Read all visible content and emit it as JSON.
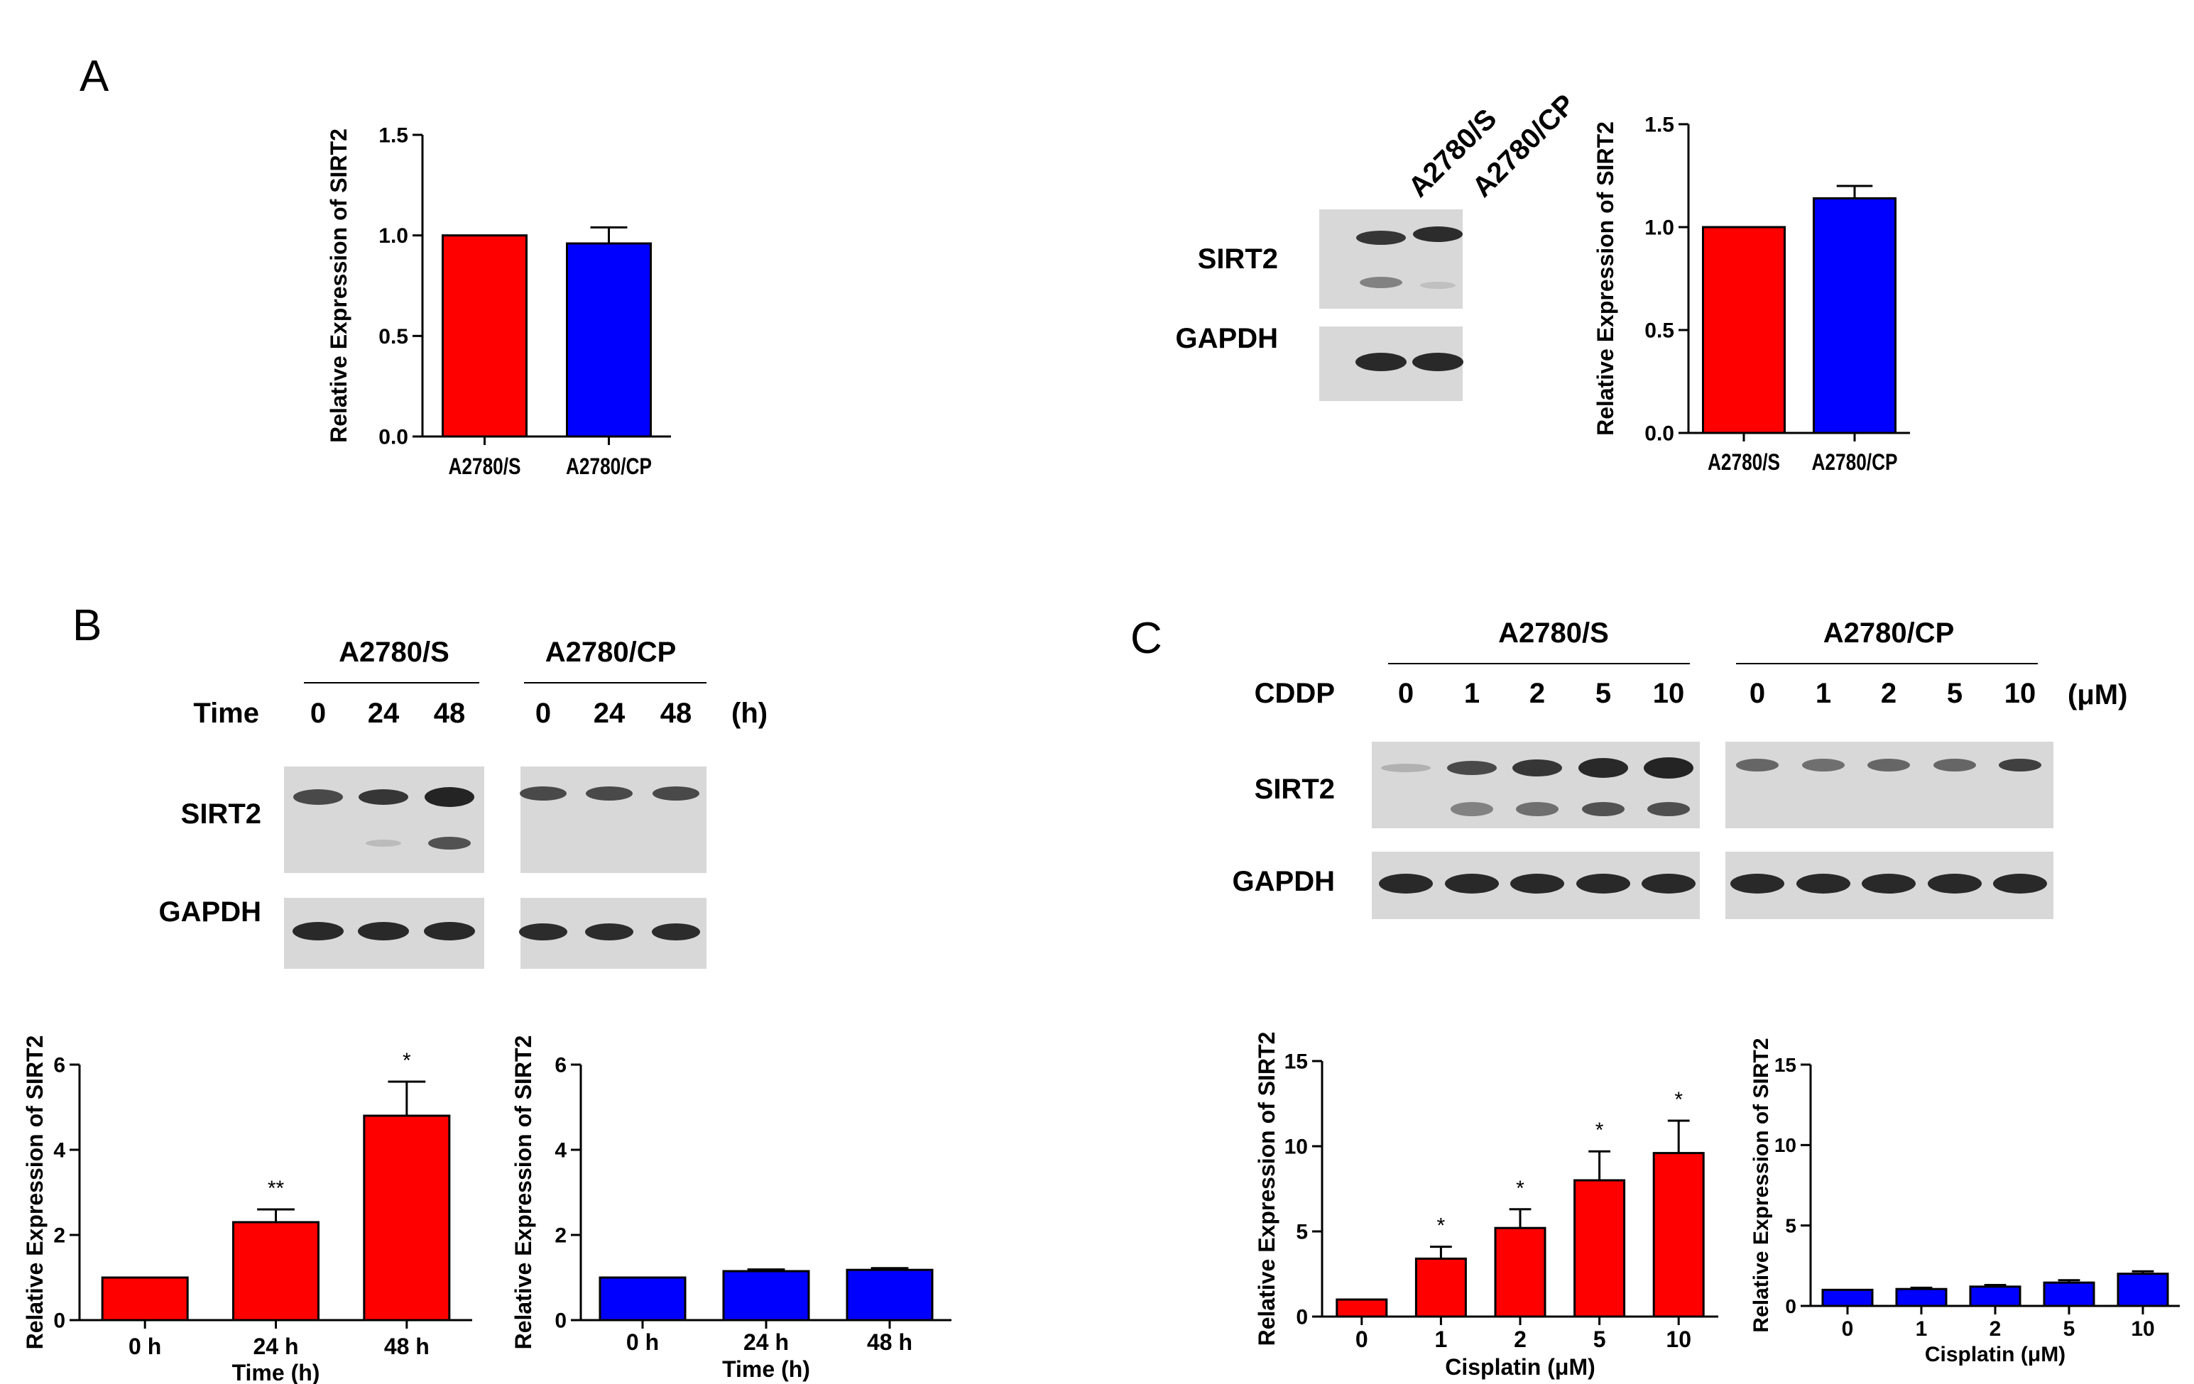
{
  "figure": {
    "panel_letters": [
      "A",
      "B",
      "C"
    ],
    "colors": {
      "red": "#ff0000",
      "blue": "#0000ff",
      "axis": "#000000",
      "blot_bg": "#d8d8d8",
      "band": "#1a1a1a"
    }
  },
  "blot_A": {
    "lanes": [
      "A2780/S",
      "A2780/CP"
    ],
    "rows": [
      "SIRT2",
      "GAPDH"
    ]
  },
  "blot_B": {
    "groups": [
      "A2780/S",
      "A2780/CP"
    ],
    "time_label": "Time",
    "unit": "(h)",
    "lanes": [
      "0",
      "24",
      "48",
      "0",
      "24",
      "48"
    ],
    "rows": [
      "SIRT2",
      "GAPDH"
    ]
  },
  "blot_C": {
    "groups": [
      "A2780/S",
      "A2780/CP"
    ],
    "dose_label": "CDDP",
    "unit": "(μM)",
    "lanes": [
      "0",
      "1",
      "2",
      "5",
      "10",
      "0",
      "1",
      "2",
      "5",
      "10"
    ],
    "rows": [
      "SIRT2",
      "GAPDH"
    ]
  },
  "chart_data": [
    {
      "id": "A1",
      "type": "bar",
      "title": "",
      "xlabel": "",
      "ylabel": "Relative Expression of SIRT2",
      "categories": [
        "A2780/S",
        "A2780/CP"
      ],
      "values": [
        1.0,
        0.96
      ],
      "errors": [
        0,
        0.08
      ],
      "colors": [
        "#ff0000",
        "#0000ff"
      ],
      "ylim": [
        0,
        1.5
      ],
      "yticks": [
        "0.0",
        "0.5",
        "1.0",
        "1.5"
      ],
      "annotations": [
        "",
        ""
      ]
    },
    {
      "id": "A2",
      "type": "bar",
      "title": "",
      "xlabel": "",
      "ylabel": "Relative Expression of SIRT2",
      "categories": [
        "A2780/S",
        "A2780/CP"
      ],
      "values": [
        1.0,
        1.14
      ],
      "errors": [
        0,
        0.06
      ],
      "colors": [
        "#ff0000",
        "#0000ff"
      ],
      "ylim": [
        0,
        1.5
      ],
      "yticks": [
        "0.0",
        "0.5",
        "1.0",
        "1.5"
      ],
      "annotations": [
        "",
        ""
      ]
    },
    {
      "id": "B1",
      "type": "bar",
      "title": "",
      "xlabel": "Time (h)",
      "ylabel": "Relative Expression of SIRT2",
      "categories": [
        "0 h",
        "24 h",
        "48 h"
      ],
      "values": [
        1.0,
        2.3,
        4.8
      ],
      "errors": [
        0,
        0.3,
        0.8
      ],
      "colors": [
        "#ff0000",
        "#ff0000",
        "#ff0000"
      ],
      "ylim": [
        0,
        6
      ],
      "yticks": [
        "0",
        "2",
        "4",
        "6"
      ],
      "annotations": [
        "",
        "**",
        "*"
      ]
    },
    {
      "id": "B2",
      "type": "bar",
      "title": "",
      "xlabel": "Time (h)",
      "ylabel": "Relative Expression of SIRT2",
      "categories": [
        "0 h",
        "24 h",
        "48 h"
      ],
      "values": [
        1.0,
        1.15,
        1.18
      ],
      "errors": [
        0,
        0.04,
        0.04
      ],
      "colors": [
        "#0000ff",
        "#0000ff",
        "#0000ff"
      ],
      "ylim": [
        0,
        6
      ],
      "yticks": [
        "0",
        "2",
        "4",
        "6"
      ],
      "annotations": [
        "",
        "",
        ""
      ]
    },
    {
      "id": "C1",
      "type": "bar",
      "title": "",
      "xlabel": "Cisplatin (μM)",
      "ylabel": "Relative Expression of SIRT2",
      "categories": [
        "0",
        "1",
        "2",
        "5",
        "10"
      ],
      "values": [
        1.0,
        3.4,
        5.2,
        8.0,
        9.6
      ],
      "errors": [
        0,
        0.7,
        1.1,
        1.7,
        1.9
      ],
      "colors": [
        "#ff0000",
        "#ff0000",
        "#ff0000",
        "#ff0000",
        "#ff0000"
      ],
      "ylim": [
        0,
        15
      ],
      "yticks": [
        "0",
        "5",
        "10",
        "15"
      ],
      "annotations": [
        "",
        "*",
        "*",
        "*",
        "*"
      ]
    },
    {
      "id": "C2",
      "type": "bar",
      "title": "",
      "xlabel": "Cisplatin (μM)",
      "ylabel": "Relative Expression of SIRT2",
      "categories": [
        "0",
        "1",
        "2",
        "5",
        "10"
      ],
      "values": [
        1.0,
        1.05,
        1.2,
        1.45,
        2.0
      ],
      "errors": [
        0,
        0.08,
        0.1,
        0.15,
        0.15
      ],
      "colors": [
        "#0000ff",
        "#0000ff",
        "#0000ff",
        "#0000ff",
        "#0000ff"
      ],
      "ylim": [
        0,
        15
      ],
      "yticks": [
        "0",
        "5",
        "10",
        "15"
      ],
      "annotations": [
        "",
        "",
        "",
        "",
        ""
      ]
    }
  ]
}
